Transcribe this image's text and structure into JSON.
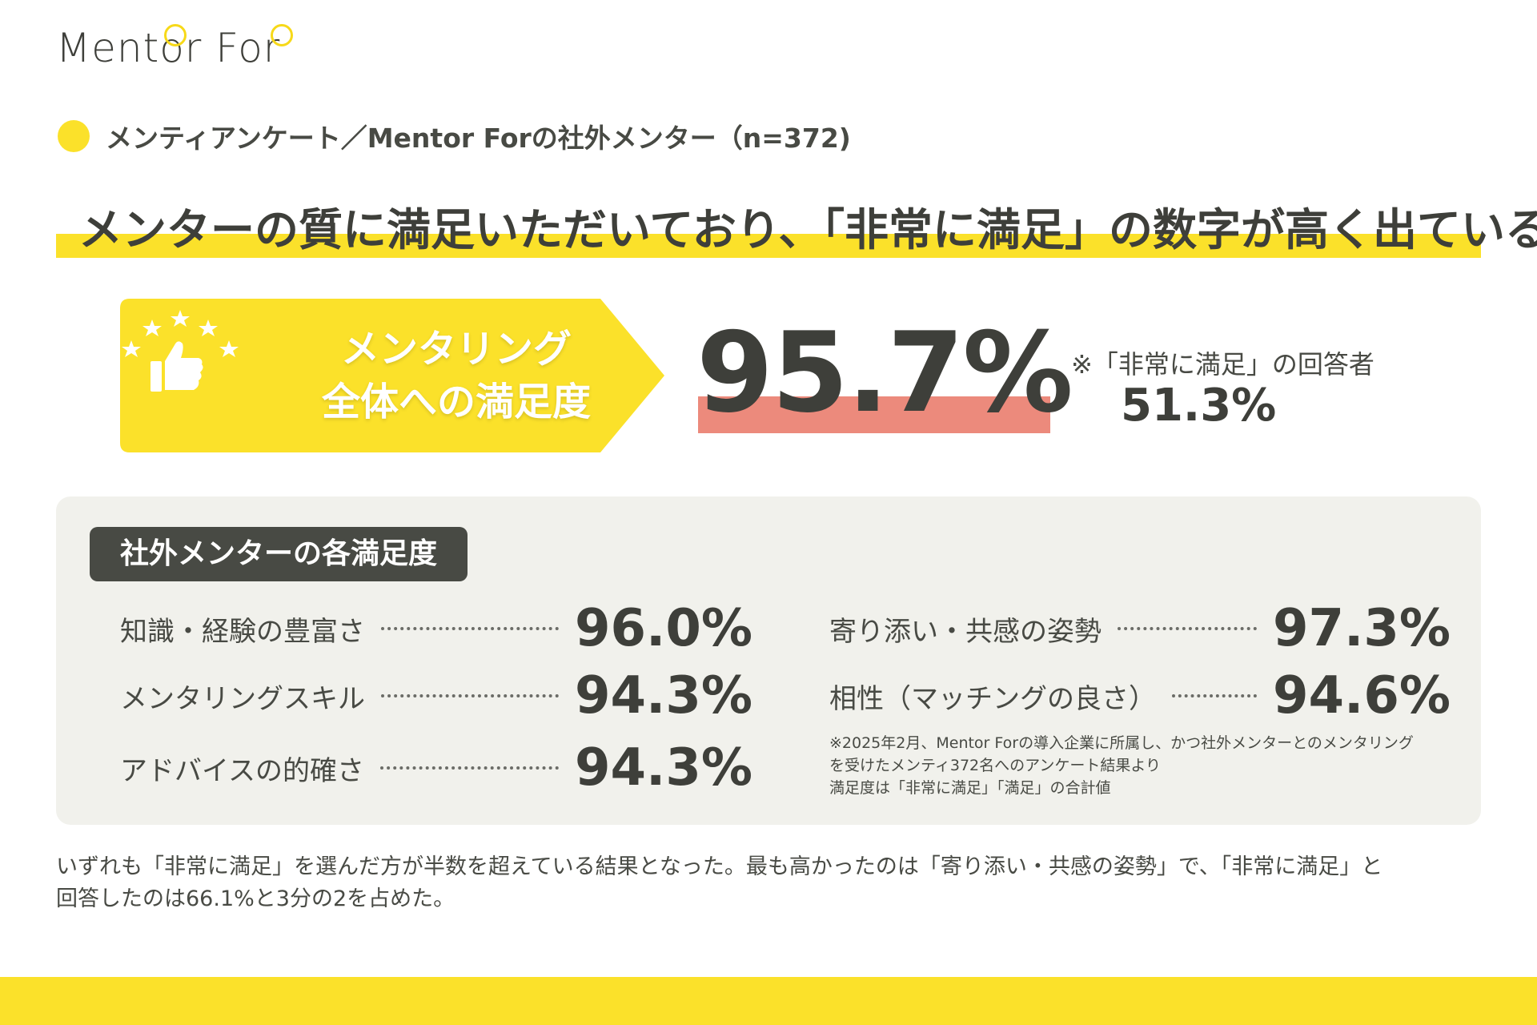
{
  "brand": {
    "logo_text": "Mentor For",
    "accent": "#fbe12a",
    "dark": "#484a44",
    "highlight": "#ec8a7c"
  },
  "subtitle": "メンティアンケート／Mentor Forの社外メンター（n=372)",
  "headline": "メンターの質に満足いただいており、「非常に満足」の数字が高く出ている",
  "banner": {
    "line1": "メンタリング",
    "line2": "全体への満足度",
    "icon": "thumbs-up-stars-icon"
  },
  "overall": {
    "value": "95.7%",
    "note_label": "※「非常に満足」の回答者",
    "note_value": "51.3%"
  },
  "panel": {
    "title": "社外メンターの各満足度",
    "items": [
      {
        "label": "知識・経験の豊富さ",
        "value": "96.0%"
      },
      {
        "label": "メンタリングスキル",
        "value": "94.3%"
      },
      {
        "label": "アドバイスの的確さ",
        "value": "94.3%"
      },
      {
        "label": "寄り添い・共感の姿勢",
        "value": "97.3%"
      },
      {
        "label": "相性（マッチングの良さ）",
        "value": "94.6%"
      }
    ],
    "footnote": [
      "※2025年2月、Mentor Forの導入企業に所属し、かつ社外メンターとのメンタリング",
      "を受けたメンティ372名へのアンケート結果より",
      "満足度は「非常に満足」「満足」の合計値"
    ]
  },
  "summary": [
    "いずれも「非常に満足」を選んだ方が半数を超えている結果となった。最も高かったのは「寄り添い・共感の姿勢」で、「非常に満足」と",
    "回答したのは66.1%と3分の2を占めた。"
  ]
}
